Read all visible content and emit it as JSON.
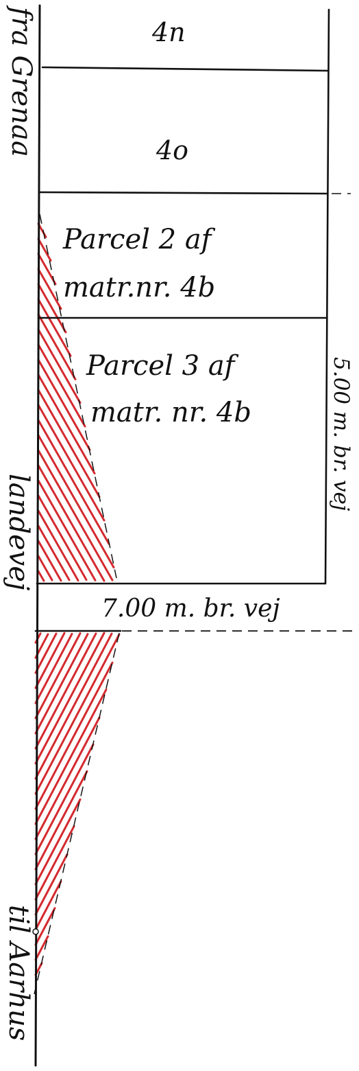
{
  "labels": {
    "parcel_4n": "4n",
    "parcel_4o": "4o",
    "parcel2_line1": "Parcel 2 af",
    "parcel2_line2": "matr.nr. 4b",
    "parcel3_line1": "Parcel 3 af",
    "parcel3_line2": "matr. nr. 4b",
    "side_road_width": "5.00 m. br. vej",
    "bottom_road_width": "7.00 m. br. vej",
    "from_town": "fra Grenaa",
    "road_name": "landevej",
    "to_town": "til Aarhus"
  },
  "colors": {
    "ink": "#111111",
    "hatch": "#d42a2f",
    "background": "#ffffff"
  }
}
